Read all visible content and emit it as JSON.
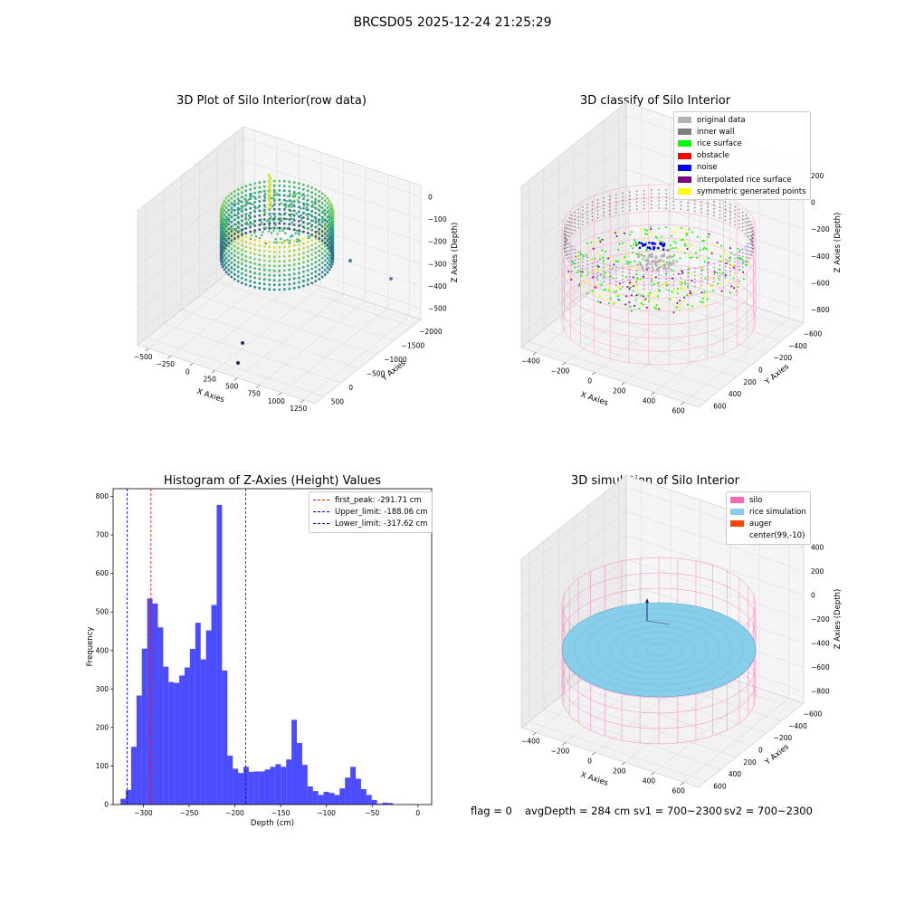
{
  "figure": {
    "title": "BRCSD05 2025-12-24 21:25:29",
    "status": {
      "flag": "flag = 0",
      "avg_depth": "avgDepth = 284 cm",
      "sv1": "sv1 = 700~2300",
      "sv2": "sv2 = 700~2300"
    }
  },
  "chart_data": [
    {
      "type": "scatter",
      "title": "3D Plot of Silo Interior(row data)",
      "xlabel": "X Axies",
      "ylabel": "Y Axies",
      "zlabel": "Z Axies (Depth)",
      "x_ticks": [
        "−500",
        "−250",
        "0",
        "250",
        "500",
        "750",
        "1000",
        "1250"
      ],
      "y_ticks": [
        "500",
        "0",
        "−500",
        "−1000",
        "−1500",
        "−2000"
      ],
      "z_ticks": [
        "0",
        "−100",
        "−200",
        "−300",
        "−400",
        "−500"
      ],
      "colormap": "viridis",
      "outlier_points": [
        {
          "x": 1000,
          "y": 200,
          "z": -300,
          "color": "#3b8a8c"
        },
        {
          "x": 1250,
          "y": 200,
          "z": -420,
          "color": "#6a7aa8"
        },
        {
          "x": 500,
          "y": -1500,
          "z": -500,
          "color": "#46226a"
        },
        {
          "x": 500,
          "y": -1900,
          "z": -500,
          "color": "#3f1860"
        }
      ]
    },
    {
      "type": "scatter",
      "title": "3D classify of Silo Interior",
      "xlabel": "X Axies",
      "ylabel": "Y Axies",
      "zlabel": "Z Axies (Depth)",
      "x_ticks": [
        "−400",
        "−200",
        "0",
        "200",
        "400",
        "600"
      ],
      "y_ticks": [
        "600",
        "400",
        "200",
        "0",
        "−200",
        "−400",
        "−600"
      ],
      "z_ticks": [
        "200",
        "0",
        "−200",
        "−400",
        "−600",
        "−800"
      ],
      "legend": [
        {
          "label": "original data",
          "color": "#b3b3b3"
        },
        {
          "label": "inner wall",
          "color": "#808080"
        },
        {
          "label": "rice surface",
          "color": "#00ff00"
        },
        {
          "label": "obstacle",
          "color": "#ff0000"
        },
        {
          "label": "noise",
          "color": "#0000ff"
        },
        {
          "label": "interpolated rice surface",
          "color": "#800080"
        },
        {
          "label": "symmetric generated points",
          "color": "#ffff00"
        }
      ]
    },
    {
      "type": "bar",
      "title": "Histogram of Z-Axies (Height) Values",
      "xlabel": "Depth (cm)",
      "ylabel": "Frequency",
      "xlim": [
        -333,
        15
      ],
      "ylim": [
        0,
        820
      ],
      "x_ticks": [
        -300,
        -250,
        -200,
        -150,
        -100,
        -50,
        0
      ],
      "x_tick_labels": [
        "−300",
        "−250",
        "−200",
        "−150",
        "−100",
        "−50",
        "0"
      ],
      "y_ticks": [
        0,
        100,
        200,
        300,
        400,
        500,
        600,
        700,
        800
      ],
      "bin_start": -325,
      "bin_width": 5.84,
      "color": "#0000ff",
      "values": [
        15,
        38,
        150,
        283,
        405,
        535,
        522,
        460,
        358,
        318,
        316,
        335,
        356,
        404,
        472,
        377,
        452,
        518,
        778,
        348,
        127,
        93,
        82,
        98,
        85,
        86,
        86,
        91,
        98,
        105,
        98,
        117,
        220,
        160,
        103,
        47,
        35,
        25,
        33,
        30,
        25,
        42,
        70,
        98,
        67,
        40,
        25,
        12,
        2,
        5,
        4
      ],
      "vlines": [
        {
          "x": -291.71,
          "color": "#ff0000",
          "label": "first_peak: -291.71 cm"
        },
        {
          "x": -188.06,
          "color": "#0000ff",
          "label": "Upper_limit: -188.06 cm"
        },
        {
          "x": -317.62,
          "color": "#0000ff",
          "label": "Lower_limit: -317.62 cm"
        }
      ]
    },
    {
      "type": "scatter",
      "title": "3D simulation of Silo Interior",
      "xlabel": "X Axies",
      "ylabel": "Y Axies",
      "zlabel": "Z Axies (Depth)",
      "x_ticks": [
        "−400",
        "−200",
        "0",
        "200",
        "400",
        "600"
      ],
      "y_ticks": [
        "600",
        "400",
        "200",
        "0",
        "−200",
        "−400",
        "−600"
      ],
      "z_ticks": [
        "400",
        "200",
        "0",
        "−200",
        "−400",
        "−600",
        "−800"
      ],
      "legend": [
        {
          "label": "silo",
          "color": "#ff69b4"
        },
        {
          "label": "rice simulation",
          "color": "#87ceeb"
        },
        {
          "label": "auger",
          "color": "#ff4500"
        },
        {
          "label": "center(99,-10)",
          "color": ""
        }
      ]
    }
  ]
}
